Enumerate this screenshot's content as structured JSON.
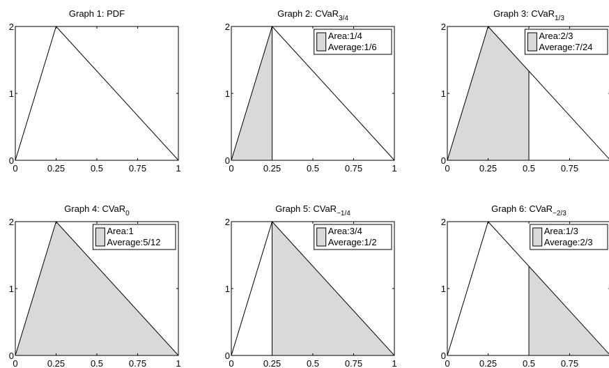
{
  "colors": {
    "fill": "#d9d9d9",
    "line": "#000000",
    "background": "#ffffff"
  },
  "chart_data": [
    {
      "type": "area",
      "title": "Graph 1: PDF",
      "title_sub": "",
      "x": [
        0,
        0.25,
        1
      ],
      "y": [
        0,
        2,
        0
      ],
      "xlim": [
        0,
        1
      ],
      "ylim": [
        0,
        2
      ],
      "xticks": [
        "0",
        "0.25",
        "0.5",
        "0.75",
        "1"
      ],
      "yticks": [
        "0",
        "1",
        "2"
      ],
      "shade_from": null,
      "shade_to": null,
      "divider": null,
      "legend": null
    },
    {
      "type": "area",
      "title": "Graph 2: CVaR",
      "title_sub": "3/4",
      "x": [
        0,
        0.25,
        1
      ],
      "y": [
        0,
        2,
        0
      ],
      "xlim": [
        0,
        1
      ],
      "ylim": [
        0,
        2
      ],
      "xticks": [
        "0",
        "0.25",
        "0.5",
        "0.75",
        "1"
      ],
      "yticks": [
        "0",
        "1",
        "2"
      ],
      "shade_from": 0,
      "shade_to": 0.25,
      "divider": 0.25,
      "legend": {
        "placement": "top-right",
        "lines": [
          "Area:1/4",
          "Average:1/6"
        ]
      }
    },
    {
      "type": "area",
      "title": "Graph 3: CVaR",
      "title_sub": "1/3",
      "x": [
        0,
        0.25,
        1
      ],
      "y": [
        0,
        2,
        0
      ],
      "xlim": [
        0,
        1
      ],
      "ylim": [
        0,
        2
      ],
      "xticks": [
        "0",
        "0.25",
        "0.5",
        "0.75",
        ""
      ],
      "yticks": [
        "0",
        "1",
        "2"
      ],
      "shade_from": 0,
      "shade_to": 0.5,
      "divider": 0.5,
      "legend": {
        "placement": "top-right",
        "lines": [
          "Area:2/3",
          "Average:7/24"
        ]
      }
    },
    {
      "type": "area",
      "title": "Graph 4: CVaR",
      "title_sub": "0",
      "x": [
        0,
        0.25,
        1
      ],
      "y": [
        0,
        2,
        0
      ],
      "xlim": [
        0,
        1
      ],
      "ylim": [
        0,
        2
      ],
      "xticks": [
        "0",
        "0.25",
        "0.5",
        "0.75",
        "1"
      ],
      "yticks": [
        "0",
        "1",
        "2"
      ],
      "shade_from": 0,
      "shade_to": 1,
      "divider": null,
      "legend": {
        "placement": "top-right",
        "lines": [
          "Area:1",
          "Average:5/12"
        ]
      }
    },
    {
      "type": "area",
      "title": "Graph 5: CVaR",
      "title_sub": "−1/4",
      "x": [
        0,
        0.25,
        1
      ],
      "y": [
        0,
        2,
        0
      ],
      "xlim": [
        0,
        1
      ],
      "ylim": [
        0,
        2
      ],
      "xticks": [
        "0",
        "0.25",
        "0.5",
        "0.75",
        "1"
      ],
      "yticks": [
        "0",
        "1",
        "2"
      ],
      "shade_from": 0.25,
      "shade_to": 1,
      "divider": 0.25,
      "legend": {
        "placement": "top-right",
        "lines": [
          "Area:3/4",
          "Average:1/2"
        ]
      }
    },
    {
      "type": "area",
      "title": "Graph 6: CVaR",
      "title_sub": "−2/3",
      "x": [
        0,
        0.25,
        1
      ],
      "y": [
        0,
        2,
        0
      ],
      "xlim": [
        0,
        1
      ],
      "ylim": [
        0,
        2
      ],
      "xticks": [
        "0",
        "0.25",
        "0.5",
        "0.75",
        ""
      ],
      "yticks": [
        "0",
        "1",
        "2"
      ],
      "shade_from": 0.5,
      "shade_to": 1,
      "divider": 0.5,
      "legend": {
        "placement": "top-right",
        "lines": [
          "Area:1/3",
          "Average:2/3"
        ]
      }
    }
  ]
}
